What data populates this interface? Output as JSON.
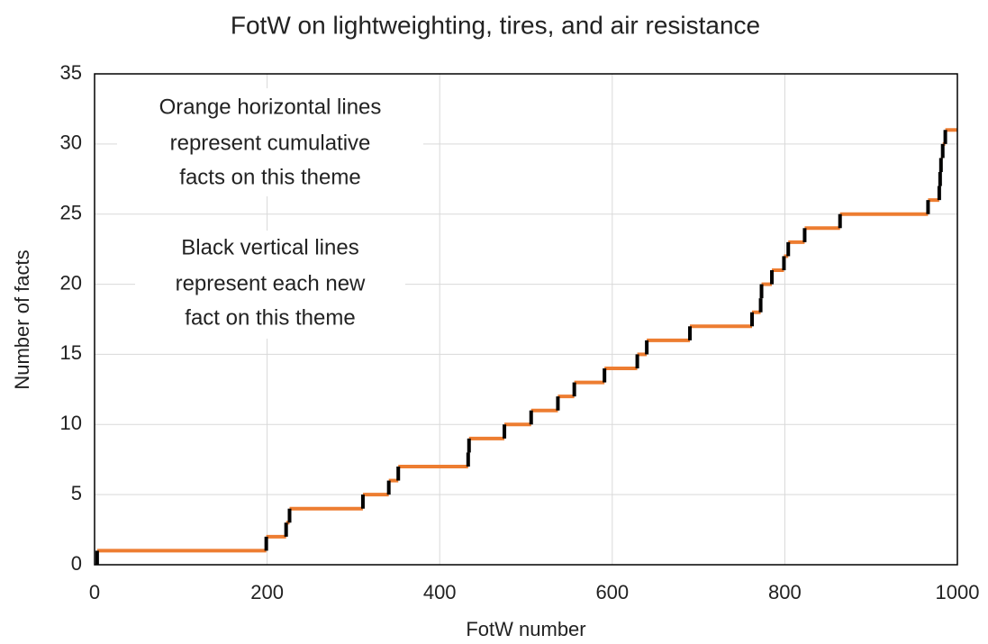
{
  "chart_data": {
    "type": "step",
    "title": "FotW on lightweighting, tires, and air resistance",
    "xlabel": "FotW number",
    "ylabel": "Number of facts",
    "annotations": [
      [
        "Orange horizontal lines",
        "represent cumulative",
        "facts on this theme"
      ],
      [
        "Black vertical lines",
        "represent each new",
        "fact on this theme"
      ]
    ],
    "x": [
      3,
      199,
      222,
      226,
      311,
      341,
      352,
      433,
      434,
      475,
      506,
      537,
      556,
      591,
      629,
      640,
      690,
      762,
      772,
      773,
      785,
      799,
      804,
      823,
      864,
      966,
      979,
      980,
      981,
      983,
      986
    ],
    "values": [
      1,
      2,
      3,
      4,
      5,
      6,
      7,
      8,
      9,
      10,
      11,
      12,
      13,
      14,
      15,
      16,
      17,
      18,
      19,
      20,
      21,
      22,
      23,
      24,
      25,
      26,
      27,
      28,
      29,
      30,
      31
    ],
    "step_color": "#ed7d31",
    "rise_color": "#000000",
    "xlim": [
      0,
      1000
    ],
    "xticks": [
      0,
      200,
      400,
      600,
      800,
      1000
    ],
    "ylim": [
      0,
      35
    ],
    "yticks": [
      0,
      5,
      10,
      15,
      20,
      25,
      30,
      35
    ],
    "grid": true
  }
}
